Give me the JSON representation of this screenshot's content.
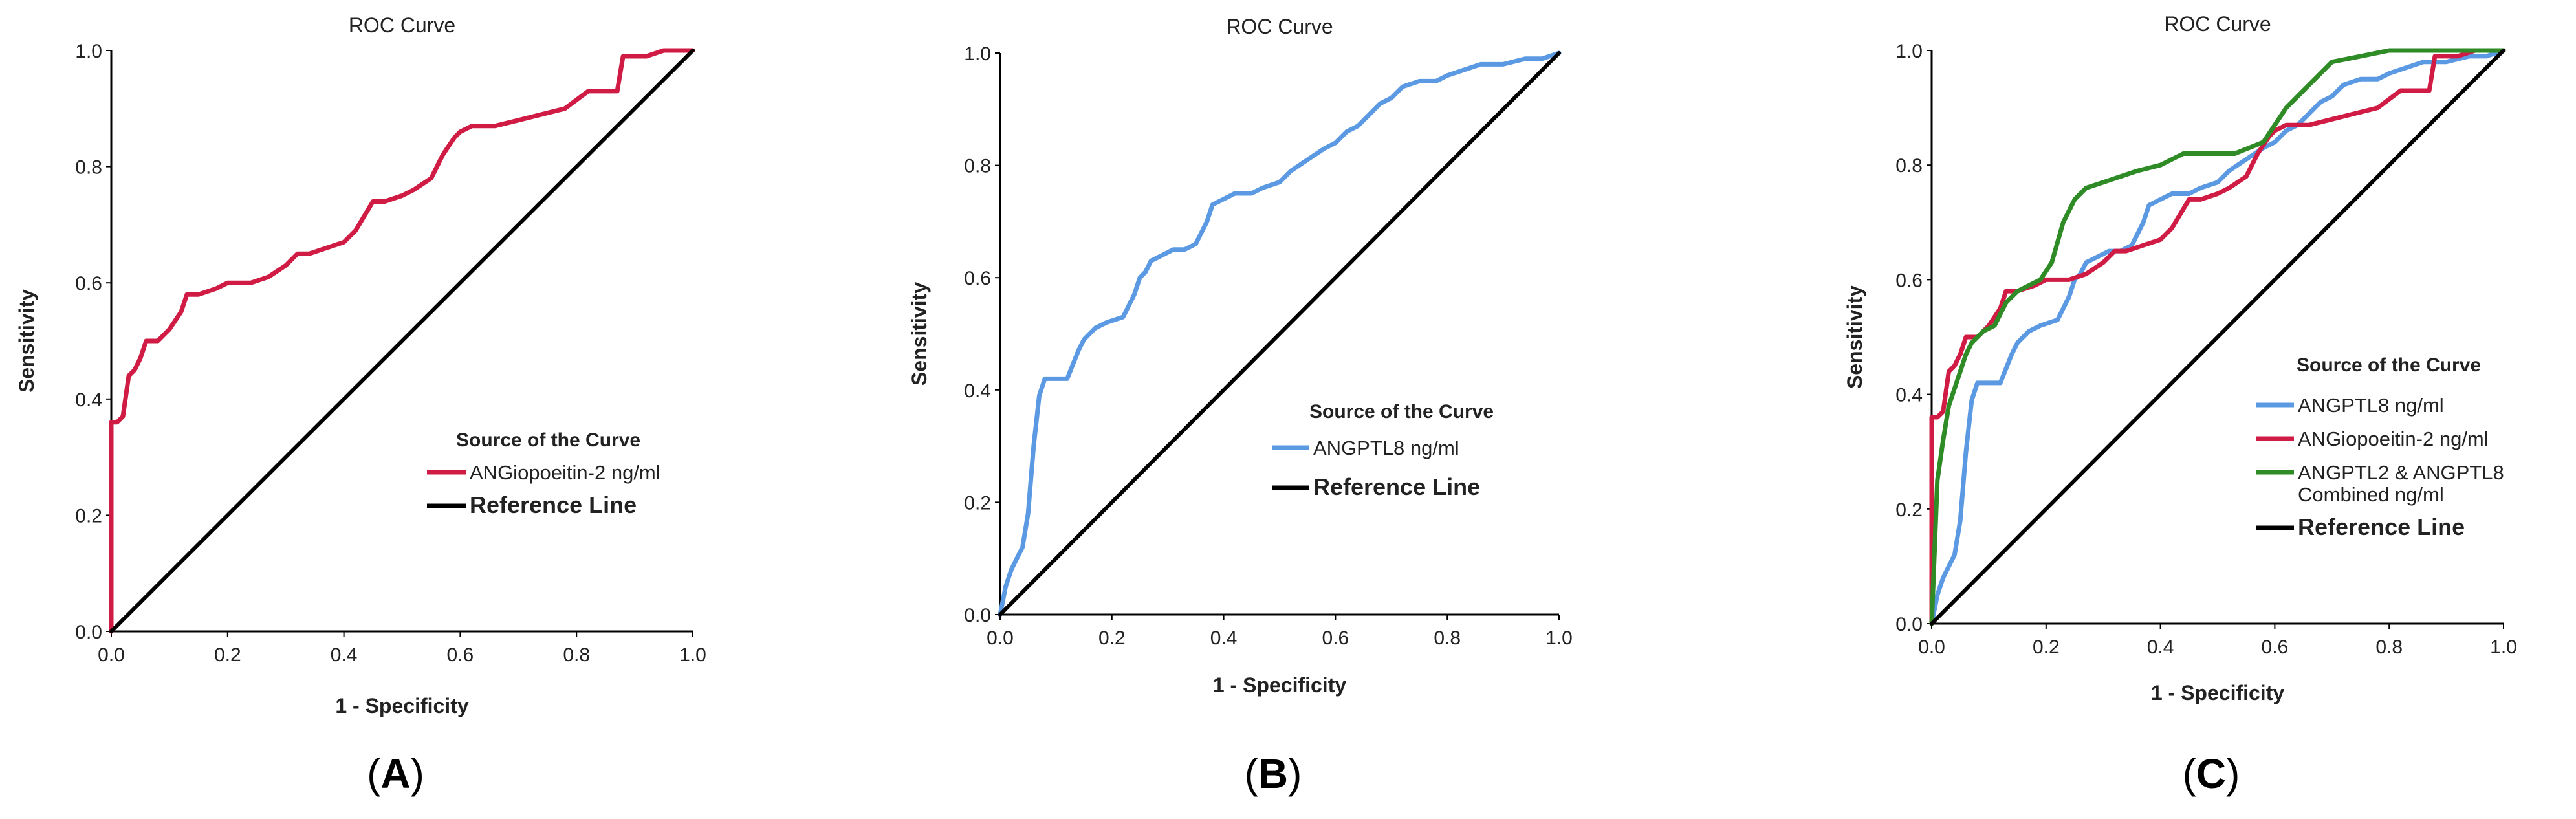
{
  "figure": {
    "panels": [
      {
        "label_prefix": "(",
        "label_letter": "A",
        "label_suffix": ")"
      },
      {
        "label_prefix": "(",
        "label_letter": "B",
        "label_suffix": ")"
      },
      {
        "label_prefix": "(",
        "label_letter": "C",
        "label_suffix": ")"
      }
    ]
  },
  "chart_data": [
    {
      "type": "line",
      "title": "ROC Curve",
      "xlabel": "1 - Specificity",
      "ylabel": "Sensitivity",
      "xlim": [
        0,
        1
      ],
      "ylim": [
        0,
        1
      ],
      "xticks": [
        "0.0",
        "0.2",
        "0.4",
        "0.6",
        "0.8",
        "1.0"
      ],
      "yticks": [
        "0.0",
        "0.2",
        "0.4",
        "0.6",
        "0.8",
        "1.0"
      ],
      "legend_title": "Source of the Curve",
      "legend_position": "center-right",
      "series": [
        {
          "name": "ANGiopoeitin-2 ng/ml",
          "color": "#d01c45",
          "x": [
            0,
            0,
            0.01,
            0.02,
            0.03,
            0.04,
            0.05,
            0.06,
            0.07,
            0.08,
            0.1,
            0.12,
            0.13,
            0.14,
            0.15,
            0.18,
            0.2,
            0.24,
            0.27,
            0.3,
            0.32,
            0.34,
            0.37,
            0.4,
            0.42,
            0.45,
            0.47,
            0.5,
            0.52,
            0.55,
            0.57,
            0.59,
            0.6,
            0.62,
            0.66,
            0.7,
            0.74,
            0.78,
            0.82,
            0.87,
            0.88,
            0.92,
            0.95,
            1.0
          ],
          "y": [
            0,
            0.36,
            0.36,
            0.37,
            0.44,
            0.45,
            0.47,
            0.5,
            0.5,
            0.5,
            0.52,
            0.55,
            0.58,
            0.58,
            0.58,
            0.59,
            0.6,
            0.6,
            0.61,
            0.63,
            0.65,
            0.65,
            0.66,
            0.67,
            0.69,
            0.74,
            0.74,
            0.75,
            0.76,
            0.78,
            0.82,
            0.85,
            0.86,
            0.87,
            0.87,
            0.88,
            0.89,
            0.9,
            0.93,
            0.93,
            0.99,
            0.99,
            1.0,
            1.0
          ]
        },
        {
          "name": "Reference Line",
          "color": "#000000",
          "x": [
            0,
            1
          ],
          "y": [
            0,
            1
          ]
        }
      ]
    },
    {
      "type": "line",
      "title": "ROC Curve",
      "xlabel": "1 - Specificity",
      "ylabel": "Sensitivity",
      "xlim": [
        0,
        1
      ],
      "ylim": [
        0,
        1
      ],
      "xticks": [
        "0.0",
        "0.2",
        "0.4",
        "0.6",
        "0.8",
        "1.0"
      ],
      "yticks": [
        "0.0",
        "0.2",
        "0.4",
        "0.6",
        "0.8",
        "1.0"
      ],
      "legend_title": "Source of the Curve",
      "legend_position": "center-right",
      "series": [
        {
          "name": "ANGPTL8 ng/ml",
          "color": "#5b9ae3",
          "x": [
            0,
            0.01,
            0.02,
            0.03,
            0.04,
            0.05,
            0.06,
            0.07,
            0.08,
            0.1,
            0.12,
            0.14,
            0.15,
            0.17,
            0.19,
            0.22,
            0.24,
            0.25,
            0.26,
            0.27,
            0.29,
            0.31,
            0.33,
            0.35,
            0.37,
            0.38,
            0.4,
            0.42,
            0.45,
            0.47,
            0.5,
            0.52,
            0.55,
            0.58,
            0.6,
            0.62,
            0.64,
            0.66,
            0.68,
            0.7,
            0.72,
            0.75,
            0.78,
            0.8,
            0.83,
            0.86,
            0.9,
            0.94,
            0.97,
            1.0
          ],
          "y": [
            0,
            0.05,
            0.08,
            0.1,
            0.12,
            0.18,
            0.3,
            0.39,
            0.42,
            0.42,
            0.42,
            0.47,
            0.49,
            0.51,
            0.52,
            0.53,
            0.57,
            0.6,
            0.61,
            0.63,
            0.64,
            0.65,
            0.65,
            0.66,
            0.7,
            0.73,
            0.74,
            0.75,
            0.75,
            0.76,
            0.77,
            0.79,
            0.81,
            0.83,
            0.84,
            0.86,
            0.87,
            0.89,
            0.91,
            0.92,
            0.94,
            0.95,
            0.95,
            0.96,
            0.97,
            0.98,
            0.98,
            0.99,
            0.99,
            1.0
          ]
        },
        {
          "name": "Reference Line",
          "color": "#000000",
          "x": [
            0,
            1
          ],
          "y": [
            0,
            1
          ]
        }
      ]
    },
    {
      "type": "line",
      "title": "ROC Curve",
      "xlabel": "1 - Specificity",
      "ylabel": "Sensitivity",
      "xlim": [
        0,
        1
      ],
      "ylim": [
        0,
        1
      ],
      "xticks": [
        "0.0",
        "0.2",
        "0.4",
        "0.6",
        "0.8",
        "1.0"
      ],
      "yticks": [
        "0.0",
        "0.2",
        "0.4",
        "0.6",
        "0.8",
        "1.0"
      ],
      "legend_title": "Source of the Curve",
      "legend_position": "center-right",
      "series": [
        {
          "name": "ANGPTL8 ng/ml",
          "color": "#5b9ae3",
          "x": [
            0,
            0.01,
            0.02,
            0.03,
            0.04,
            0.05,
            0.06,
            0.07,
            0.08,
            0.1,
            0.12,
            0.14,
            0.15,
            0.17,
            0.19,
            0.22,
            0.24,
            0.25,
            0.26,
            0.27,
            0.29,
            0.31,
            0.33,
            0.35,
            0.37,
            0.38,
            0.4,
            0.42,
            0.45,
            0.47,
            0.5,
            0.52,
            0.55,
            0.58,
            0.6,
            0.62,
            0.64,
            0.66,
            0.68,
            0.7,
            0.72,
            0.75,
            0.78,
            0.8,
            0.83,
            0.86,
            0.9,
            0.94,
            0.97,
            1.0
          ],
          "y": [
            0,
            0.05,
            0.08,
            0.1,
            0.12,
            0.18,
            0.3,
            0.39,
            0.42,
            0.42,
            0.42,
            0.47,
            0.49,
            0.51,
            0.52,
            0.53,
            0.57,
            0.6,
            0.61,
            0.63,
            0.64,
            0.65,
            0.65,
            0.66,
            0.7,
            0.73,
            0.74,
            0.75,
            0.75,
            0.76,
            0.77,
            0.79,
            0.81,
            0.83,
            0.84,
            0.86,
            0.87,
            0.89,
            0.91,
            0.92,
            0.94,
            0.95,
            0.95,
            0.96,
            0.97,
            0.98,
            0.98,
            0.99,
            0.99,
            1.0
          ]
        },
        {
          "name": "ANGiopoeitin-2 ng/ml",
          "color": "#d01c45",
          "x": [
            0,
            0,
            0.01,
            0.02,
            0.03,
            0.04,
            0.05,
            0.06,
            0.07,
            0.08,
            0.1,
            0.12,
            0.13,
            0.14,
            0.15,
            0.18,
            0.2,
            0.24,
            0.27,
            0.3,
            0.32,
            0.34,
            0.37,
            0.4,
            0.42,
            0.45,
            0.47,
            0.5,
            0.52,
            0.55,
            0.57,
            0.59,
            0.6,
            0.62,
            0.66,
            0.7,
            0.74,
            0.78,
            0.82,
            0.87,
            0.88,
            0.92,
            0.95,
            1.0
          ],
          "y": [
            0,
            0.36,
            0.36,
            0.37,
            0.44,
            0.45,
            0.47,
            0.5,
            0.5,
            0.5,
            0.52,
            0.55,
            0.58,
            0.58,
            0.58,
            0.59,
            0.6,
            0.6,
            0.61,
            0.63,
            0.65,
            0.65,
            0.66,
            0.67,
            0.69,
            0.74,
            0.74,
            0.75,
            0.76,
            0.78,
            0.82,
            0.85,
            0.86,
            0.87,
            0.87,
            0.88,
            0.89,
            0.9,
            0.93,
            0.93,
            0.99,
            0.99,
            1.0,
            1.0
          ]
        },
        {
          "name": "ANGPTL2 & ANGPTL8 Combined ng/ml",
          "name_lines": [
            "ANGPTL2 & ANGPTL8",
            "Combined ng/ml"
          ],
          "color": "#2e8b25",
          "x": [
            0,
            0.01,
            0.02,
            0.03,
            0.05,
            0.06,
            0.07,
            0.09,
            0.11,
            0.13,
            0.15,
            0.17,
            0.19,
            0.21,
            0.23,
            0.25,
            0.27,
            0.3,
            0.33,
            0.36,
            0.4,
            0.44,
            0.48,
            0.53,
            0.58,
            0.62,
            0.66,
            0.7,
            0.75,
            0.8,
            0.85,
            0.9,
            1.0
          ],
          "y": [
            0,
            0.25,
            0.32,
            0.38,
            0.44,
            0.47,
            0.49,
            0.51,
            0.52,
            0.56,
            0.58,
            0.59,
            0.6,
            0.63,
            0.7,
            0.74,
            0.76,
            0.77,
            0.78,
            0.79,
            0.8,
            0.82,
            0.82,
            0.82,
            0.84,
            0.9,
            0.94,
            0.98,
            0.99,
            1.0,
            1.0,
            1.0,
            1.0
          ]
        },
        {
          "name": "Reference Line",
          "color": "#000000",
          "x": [
            0,
            1
          ],
          "y": [
            0,
            1
          ]
        }
      ]
    }
  ]
}
